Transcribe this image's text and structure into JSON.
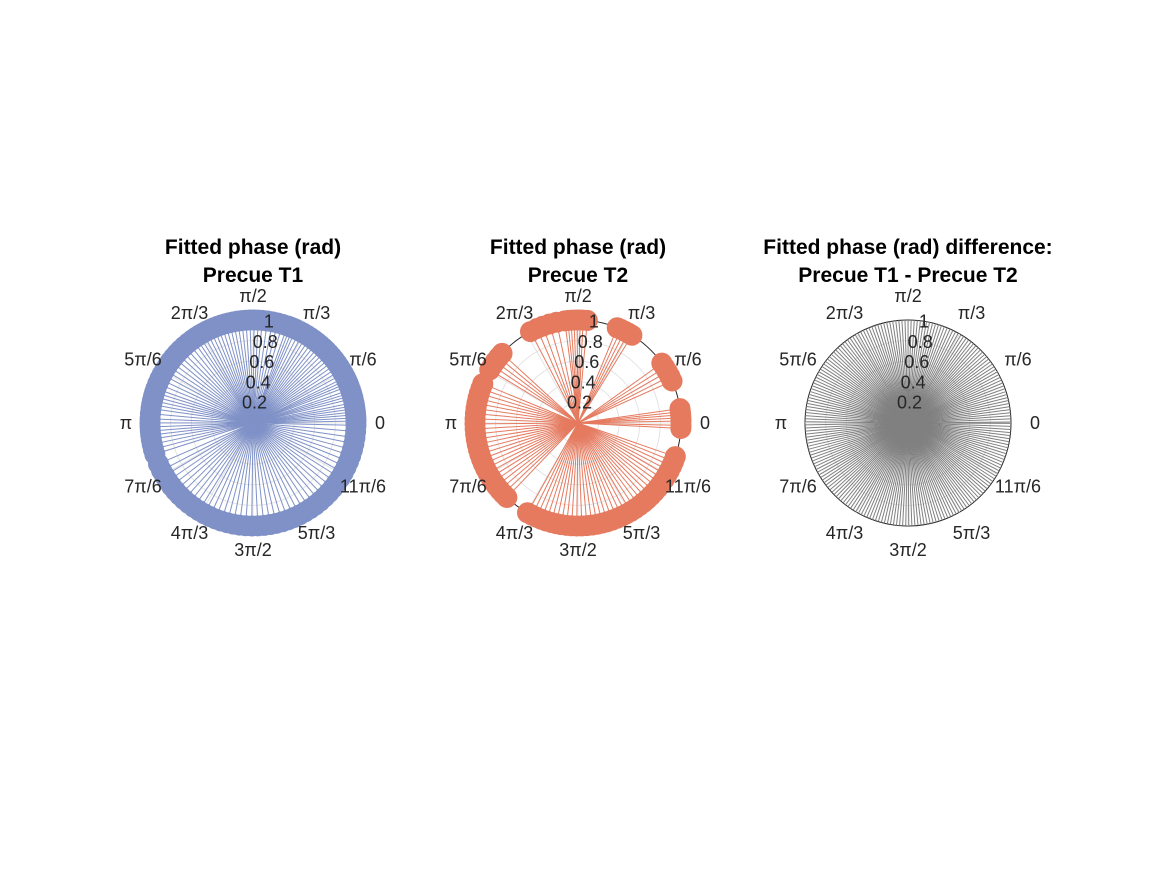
{
  "chart_data": [
    {
      "type": "polar",
      "title": [
        "Fitted phase (rad)",
        "Precue T1"
      ],
      "theta_tick_labels": [
        "0",
        "π/6",
        "π/3",
        "π/2",
        "2π/3",
        "5π/6",
        "π",
        "7π/6",
        "4π/3",
        "3π/2",
        "5π/3",
        "11π/6"
      ],
      "r_tick_labels": [
        "0.2",
        "0.4",
        "0.6",
        "0.8",
        "1"
      ],
      "rlim": [
        0,
        1
      ],
      "grid": true,
      "color": "#7f91c7",
      "style": "stem lines from origin with filled circle markers at r = 1",
      "series": [
        {
          "r": 1,
          "theta": [
            0.02,
            0.05,
            0.08,
            0.11,
            0.14,
            0.17,
            0.2,
            0.24,
            0.27,
            0.3,
            0.33,
            0.37,
            0.4,
            0.43,
            0.46,
            0.5,
            0.54,
            0.58,
            0.62,
            0.66,
            0.7,
            0.74,
            0.78,
            0.82,
            0.86,
            0.9,
            0.94,
            0.98,
            1.02,
            1.06,
            1.1,
            1.14,
            1.17,
            1.2,
            1.23,
            1.28,
            1.33,
            1.38,
            1.43,
            1.48,
            1.52,
            1.56,
            1.6,
            1.64,
            1.68,
            1.72,
            1.76,
            1.8,
            1.84,
            1.88,
            1.92,
            1.96,
            2.0,
            2.04,
            2.08,
            2.12,
            2.16,
            2.2,
            2.25,
            2.3,
            2.35,
            2.4,
            2.45,
            2.5,
            2.55,
            2.6,
            2.65,
            2.7,
            2.75,
            2.8,
            2.84,
            2.88,
            2.92,
            2.96,
            3.0,
            3.05,
            3.1,
            3.14,
            3.18,
            3.22,
            3.26,
            3.3,
            3.35,
            3.4,
            3.45,
            3.55,
            3.62,
            3.68,
            3.74,
            3.8,
            3.86,
            3.92,
            3.98,
            4.04,
            4.1,
            4.16,
            4.22,
            4.28,
            4.34,
            4.4,
            4.46,
            4.52,
            4.58,
            4.64,
            4.7,
            4.76,
            4.82,
            4.88,
            4.94,
            5.0,
            5.06,
            5.12,
            5.18,
            5.24,
            5.3,
            5.36,
            5.42,
            5.48,
            5.54,
            5.6,
            5.66,
            5.72,
            5.78,
            5.84,
            5.9,
            5.96,
            6.02,
            6.08,
            6.14,
            6.2,
            6.26
          ]
        }
      ]
    },
    {
      "type": "polar",
      "title": [
        "Fitted phase (rad)",
        "Precue T2"
      ],
      "theta_tick_labels": [
        "0",
        "π/6",
        "π/3",
        "π/2",
        "2π/3",
        "5π/6",
        "π",
        "7π/6",
        "4π/3",
        "3π/2",
        "5π/3",
        "11π/6"
      ],
      "r_tick_labels": [
        "0.2",
        "0.4",
        "0.6",
        "0.8",
        "1"
      ],
      "rlim": [
        0,
        1
      ],
      "grid": true,
      "color": "#e57a5f",
      "style": "stem lines from origin with filled circle markers at r = 1",
      "series": [
        {
          "r": 1,
          "theta": [
            0.02,
            0.05,
            0.08,
            0.11,
            0.14,
            6.26,
            6.23,
            0.42,
            0.47,
            0.52,
            0.57,
            0.62,
            1.02,
            1.06,
            1.1,
            1.14,
            1.18,
            1.48,
            1.52,
            1.55,
            1.58,
            1.61,
            1.64,
            1.67,
            1.7,
            1.78,
            1.85,
            1.92,
            1.98,
            2.05,
            2.4,
            2.45,
            2.5,
            2.55,
            2.6,
            2.75,
            2.8,
            2.85,
            2.9,
            2.95,
            3.0,
            3.05,
            3.1,
            3.15,
            3.2,
            3.25,
            3.3,
            3.35,
            3.4,
            3.45,
            3.5,
            3.55,
            3.6,
            3.65,
            3.7,
            3.75,
            3.8,
            3.85,
            3.9,
            3.95,
            4.2,
            4.25,
            4.3,
            4.35,
            4.4,
            4.45,
            4.5,
            4.55,
            4.6,
            4.65,
            4.7,
            4.75,
            4.8,
            4.85,
            4.9,
            4.95,
            5.0,
            5.05,
            5.1,
            5.15,
            5.2,
            5.25,
            5.3,
            5.35,
            5.4,
            5.45,
            5.5,
            5.55,
            5.6,
            5.65,
            5.7,
            5.75,
            5.8,
            5.85,
            5.9,
            5.95
          ]
        }
      ]
    },
    {
      "type": "polar",
      "title": [
        "Fitted phase (rad) difference:",
        "Precue T1 - Precue T2"
      ],
      "theta_tick_labels": [
        "0",
        "π/6",
        "π/3",
        "π/2",
        "2π/3",
        "5π/6",
        "π",
        "7π/6",
        "4π/3",
        "3π/2",
        "5π/3",
        "11π/6"
      ],
      "r_tick_labels": [
        "0.2",
        "0.4",
        "0.6",
        "0.8",
        "1"
      ],
      "rlim": [
        0,
        1
      ],
      "grid": true,
      "color": "#808080",
      "style": "stem lines from origin, r = 1, no markers",
      "series": [
        {
          "r": 1,
          "theta": [
            0.01,
            0.04,
            0.07,
            0.1,
            0.13,
            0.16,
            0.19,
            0.22,
            0.25,
            0.28,
            0.31,
            0.34,
            0.37,
            0.4,
            0.43,
            0.46,
            0.49,
            0.52,
            0.55,
            0.58,
            0.61,
            0.64,
            0.67,
            0.7,
            0.73,
            0.76,
            0.79,
            0.82,
            0.85,
            0.88,
            0.91,
            0.94,
            0.97,
            1.0,
            1.03,
            1.06,
            1.09,
            1.12,
            1.15,
            1.18,
            1.21,
            1.24,
            1.27,
            1.3,
            1.33,
            1.36,
            1.39,
            1.42,
            1.45,
            1.48,
            1.51,
            1.54,
            1.57,
            1.6,
            1.63,
            1.66,
            1.69,
            1.72,
            1.75,
            1.78,
            1.81,
            1.84,
            1.87,
            1.9,
            1.93,
            1.96,
            1.99,
            2.02,
            2.05,
            2.08,
            2.11,
            2.14,
            2.17,
            2.2,
            2.23,
            2.26,
            2.29,
            2.32,
            2.35,
            2.38,
            2.41,
            2.44,
            2.47,
            2.5,
            2.53,
            2.56,
            2.59,
            2.62,
            2.65,
            2.68,
            2.71,
            2.74,
            2.77,
            2.8,
            2.83,
            2.86,
            2.89,
            2.92,
            2.95,
            2.98,
            3.01,
            3.04,
            3.07,
            3.1,
            3.13,
            3.16,
            3.19,
            3.22,
            3.25,
            3.28,
            3.31,
            3.34,
            3.37,
            3.4,
            3.43,
            3.46,
            3.49,
            3.52,
            3.55,
            3.58,
            3.61,
            3.64,
            3.67,
            3.7,
            3.73,
            3.76,
            3.79,
            3.82,
            3.85,
            3.88,
            3.91,
            3.94,
            3.97,
            4.0,
            4.03,
            4.06,
            4.09,
            4.12,
            4.15,
            4.18,
            4.21,
            4.24,
            4.27,
            4.3,
            4.33,
            4.36,
            4.39,
            4.42,
            4.45,
            4.48,
            4.51,
            4.54,
            4.57,
            4.6,
            4.63,
            4.66,
            4.69,
            4.72,
            4.75,
            4.78,
            4.81,
            4.84,
            4.87,
            4.9,
            4.93,
            4.96,
            4.99,
            5.02,
            5.05,
            5.08,
            5.11,
            5.14,
            5.17,
            5.2,
            5.23,
            5.26,
            5.29,
            5.32,
            5.35,
            5.38,
            5.41,
            5.44,
            5.47,
            5.5,
            5.53,
            5.56,
            5.59,
            5.62,
            5.65,
            5.68,
            5.71,
            5.74,
            5.77,
            5.8,
            5.83,
            5.86,
            5.89,
            5.92,
            5.95,
            5.98,
            6.01,
            6.04,
            6.07,
            6.1,
            6.13,
            6.16,
            6.19,
            6.22,
            6.25,
            6.28
          ]
        }
      ]
    }
  ]
}
